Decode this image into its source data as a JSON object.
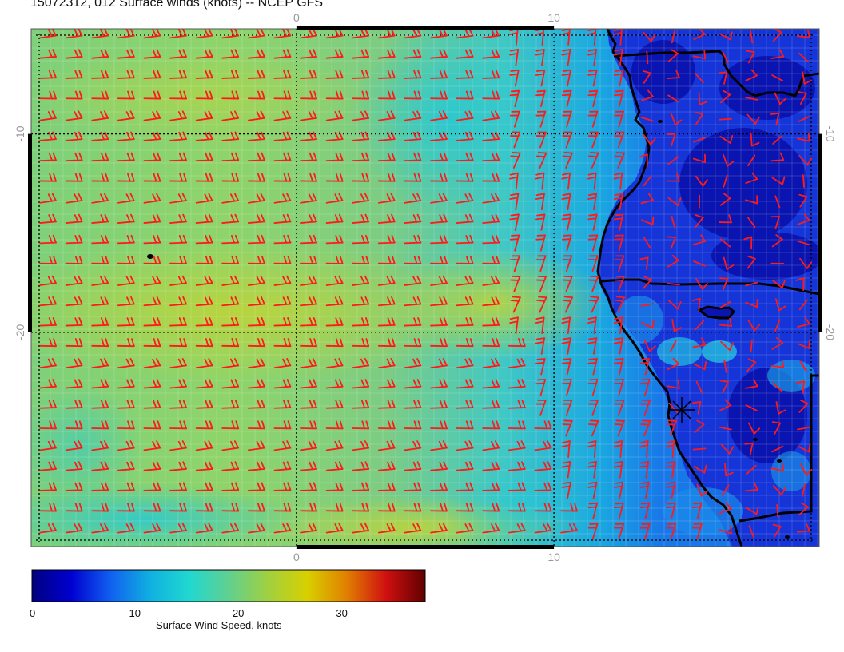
{
  "title": "15072312, 012 Surface winds (knots) -- NCEP GFS",
  "map": {
    "lon_range": [
      -10.3,
      20.3
    ],
    "lat_range": [
      -30.8,
      -4.7
    ],
    "lon_ticks": [
      {
        "value": 0,
        "label": "0"
      },
      {
        "value": 10,
        "label": "10"
      }
    ],
    "lat_ticks": [
      {
        "value": -10,
        "label": "-10"
      },
      {
        "value": -20,
        "label": "-20"
      }
    ],
    "grid": "dotted graticule every 10 degrees",
    "ocean_wind_speed_knots": "approx 15-24",
    "land_wind_speed_knots": "approx 0-8",
    "barb_color": "#ff1a1a",
    "coastline_color": "#000000",
    "marker": "station-star"
  },
  "colorbar": {
    "title": "Surface Wind Speed, knots",
    "min": 0,
    "max": 38,
    "ticks": [
      {
        "value": 0,
        "label": "0"
      },
      {
        "value": 10,
        "label": "10"
      },
      {
        "value": 20,
        "label": "20"
      },
      {
        "value": 30,
        "label": "30"
      }
    ],
    "stops": [
      "#000080",
      "#0000d0",
      "#1060f0",
      "#10b0e0",
      "#20d8d0",
      "#60d090",
      "#a0d040",
      "#d8d000",
      "#e08000",
      "#d01010",
      "#600000"
    ]
  }
}
